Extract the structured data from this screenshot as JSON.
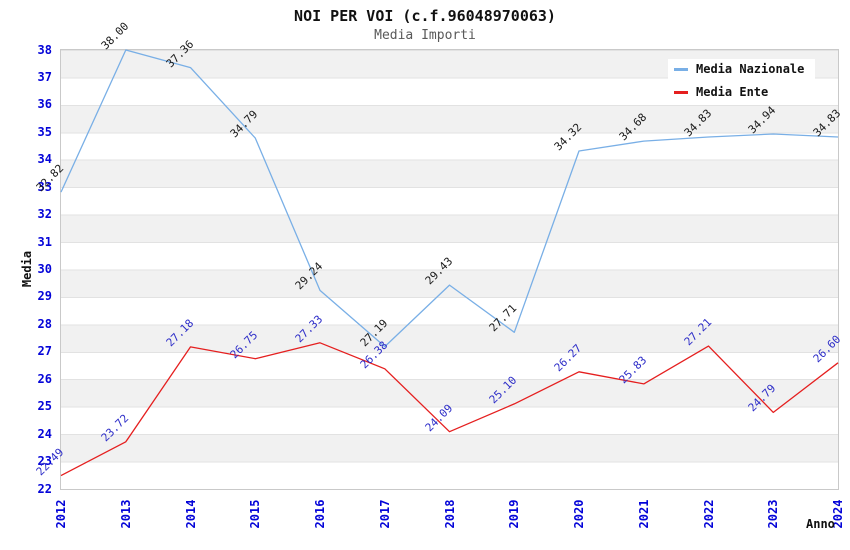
{
  "header": {
    "title": "NOI PER VOI (c.f.96048970063)",
    "subtitle": "Media Importi"
  },
  "axes": {
    "y_title": "Media",
    "x_title": "Anno",
    "y_ticks": [
      38,
      37,
      36,
      35,
      34,
      33,
      32,
      31,
      30,
      29,
      28,
      27,
      26,
      25,
      24,
      23,
      22
    ],
    "x_ticks": [
      "2012",
      "2013",
      "2014",
      "2015",
      "2016",
      "2017",
      "2018",
      "2019",
      "2020",
      "2021",
      "2022",
      "2023",
      "2024"
    ]
  },
  "colors": {
    "tick_blue": "#0404d8",
    "band_gray": "#f1f1f1",
    "band_line": "#e2e2e2",
    "plot_border": "#c9c9c9",
    "subtitle_gray": "#595959",
    "nazionale_line": "#79afe6",
    "ente_line": "#e51f1f",
    "nazionale_label": "#1a1a1a",
    "ente_label": "#2d2dc8"
  },
  "chart_data": {
    "type": "line",
    "title": "NOI PER VOI (c.f.96048970063)",
    "subtitle": "Media Importi",
    "xlabel": "Anno",
    "ylabel": "Media",
    "x": [
      2012,
      2013,
      2014,
      2015,
      2016,
      2017,
      2018,
      2019,
      2020,
      2021,
      2022,
      2023,
      2024
    ],
    "series": [
      {
        "name": "Media Nazionale",
        "color": "#79afe6",
        "label_color": "#1a1a1a",
        "values": [
          32.82,
          38.0,
          37.36,
          34.79,
          29.24,
          27.19,
          29.43,
          27.71,
          34.32,
          34.68,
          34.83,
          34.94,
          34.83
        ]
      },
      {
        "name": "Media Ente",
        "color": "#e51f1f",
        "label_color": "#2d2dc8",
        "values": [
          22.49,
          23.72,
          27.18,
          26.75,
          27.33,
          26.38,
          24.09,
          25.1,
          26.27,
          25.83,
          27.21,
          24.79,
          26.6
        ]
      }
    ],
    "ylim": [
      22,
      38
    ],
    "xlim": [
      2012,
      2024
    ],
    "y_tick_step": 1,
    "grid": "alternating-horizontal-bands",
    "point_labels": "rotated-45deg",
    "legend_position": "top-right"
  }
}
